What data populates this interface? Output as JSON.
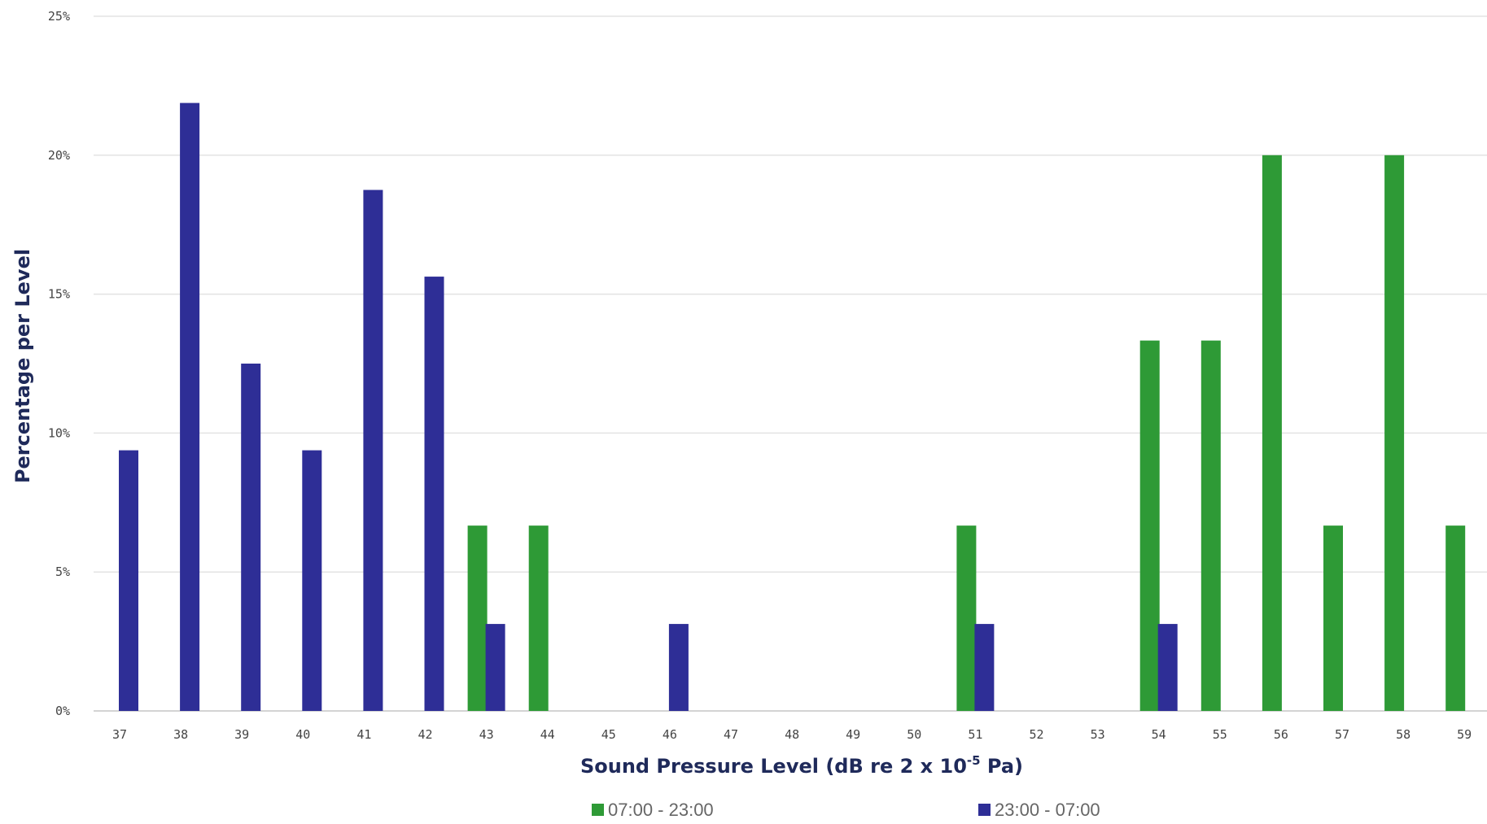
{
  "chart_data": {
    "type": "bar",
    "title": "",
    "ylabel": "Percentage per Level",
    "xlabel": {
      "prefix": "Sound Pressure Level (dB re 2 x 10",
      "superscript": "-5",
      "suffix": " Pa)"
    },
    "ylim": [
      0,
      25
    ],
    "yticks": [
      "0%",
      "5%",
      "10%",
      "15%",
      "20%",
      "25%"
    ],
    "ytick_values": [
      0,
      5,
      10,
      15,
      20,
      25
    ],
    "grid": true,
    "legend_position": "bottom",
    "categories": [
      "37",
      "38",
      "39",
      "40",
      "41",
      "42",
      "43",
      "44",
      "45",
      "46",
      "47",
      "48",
      "49",
      "50",
      "51",
      "52",
      "53",
      "54",
      "55",
      "56",
      "57",
      "58",
      "59"
    ],
    "series": [
      {
        "name": "07:00 - 23:00",
        "color": "#2e9a36",
        "values": [
          0,
          0,
          0,
          0,
          0,
          0,
          6.67,
          6.67,
          0,
          0,
          0,
          0,
          0,
          0,
          6.67,
          0,
          0,
          13.33,
          13.33,
          20,
          6.67,
          20,
          6.67
        ]
      },
      {
        "name": "23:00 - 07:00",
        "color": "#2e2e96",
        "values": [
          9.38,
          21.88,
          12.5,
          9.38,
          18.75,
          15.63,
          3.13,
          0,
          0,
          3.13,
          0,
          0,
          0,
          0,
          3.13,
          0,
          0,
          3.13,
          0,
          0,
          0,
          0,
          0
        ]
      }
    ]
  }
}
